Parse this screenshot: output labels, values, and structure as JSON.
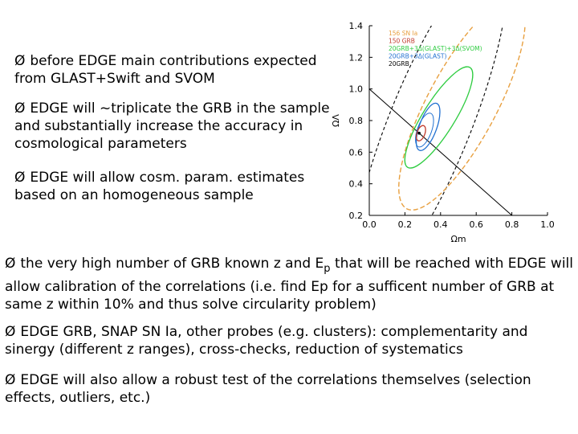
{
  "bullets": {
    "b1": "before EDGE main contributions expected from GLAST+Swift and SVOM",
    "b2": "EDGE will ~triplicate the GRB in the sample and substantially increase the accuracy in cosmological parameters",
    "b3": "EDGE will allow cosm. param. estimates based on an homogeneous sample",
    "b4_pre": "the very high number of GRB known z and E",
    "b4_sub": "p",
    "b4_post": " that will be reached with EDGE will allow calibration of the correlations (i.e. find Ep for a sufficent number of GRB at same z within 10% and thus solve circularity problem)",
    "b5": "EDGE GRB, SNAP SN Ia, other probes (e.g. clusters): complementarity and sinergy (different z ranges), cross-checks, reduction of systematics",
    "b6": "EDGE will also allow a robust test of the correlations themselves (selection effects, outliers, etc.)"
  },
  "arrow_glyph": "Ø",
  "chart_data": {
    "type": "scatter",
    "title": "",
    "xlabel": "Ωm",
    "ylabel": "ΩΛ",
    "xlim": [
      0.0,
      1.0
    ],
    "ylim": [
      0.2,
      1.4
    ],
    "xticks": [
      "0.0",
      "0.2",
      "0.4",
      "0.6",
      "0.8",
      "1.0"
    ],
    "yticks": [
      "0.2",
      "0.4",
      "0.6",
      "0.8",
      "1.0",
      "1.2",
      "1.4"
    ],
    "legend": {
      "placement": "top-left",
      "entries": [
        {
          "name": "156 SN Ia",
          "color": "#e8a040"
        },
        {
          "name": "150 GRB",
          "color": "#c0392b"
        },
        {
          "name": "20GRB+3Δ(GLAST)+3Δ(SVOM)",
          "color": "#2ecc40"
        },
        {
          "name": "20GRB+3Δ(GLAST)",
          "color": "#1f6fd0"
        },
        {
          "name": "20GRB",
          "color": "#000000"
        }
      ]
    },
    "best_fit": {
      "x": 0.28,
      "y": 0.72
    },
    "flat_universe_line": [
      {
        "x": 0.0,
        "y": 1.0
      },
      {
        "x": 1.0,
        "y": 0.0
      }
    ],
    "colors": {
      "sn": "#e8a040",
      "grb150": "#c0392b",
      "green": "#2ecc40",
      "blue": "#1f6fd0",
      "black": "#000000"
    }
  }
}
